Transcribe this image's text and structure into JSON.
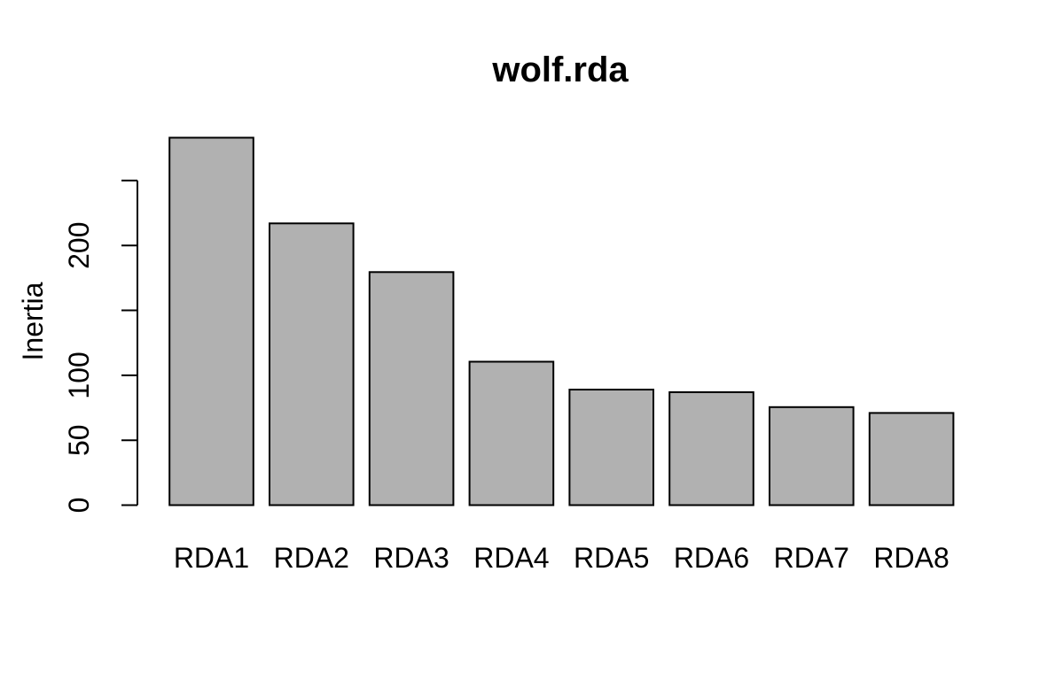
{
  "chart_data": {
    "type": "bar",
    "title": "wolf.rda",
    "xlabel": "",
    "ylabel": "Inertia",
    "categories": [
      "RDA1",
      "RDA2",
      "RDA3",
      "RDA4",
      "RDA5",
      "RDA6",
      "RDA7",
      "RDA8"
    ],
    "values": [
      283,
      217,
      179.5,
      110.5,
      89,
      87,
      75.5,
      71
    ],
    "axis_range": [
      0,
      250
    ],
    "yticks": [
      0,
      50,
      100,
      150,
      200,
      250
    ],
    "ytick_labels": [
      "0",
      "50",
      "100",
      "",
      "200",
      ""
    ],
    "grid": false,
    "legend_position": "none",
    "colors": {
      "bar_fill": "#b1b1b1",
      "bar_stroke": "#000000",
      "axis": "#000000",
      "text": "#000000",
      "background": "#ffffff"
    }
  }
}
